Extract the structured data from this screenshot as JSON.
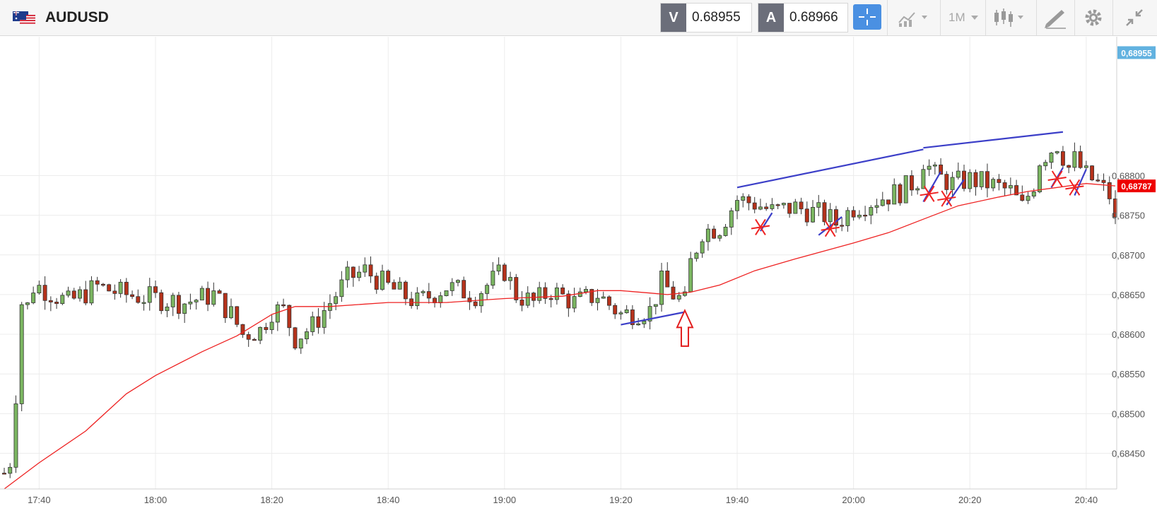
{
  "toolbar": {
    "symbol": "AUDUSD",
    "sell_label": "V",
    "sell_price": "0.68955",
    "buy_label": "A",
    "buy_price": "0.68966",
    "timeframe": "1M"
  },
  "colors": {
    "up_candle": "#7bb661",
    "down_candle": "#b5321b",
    "moving_average": "#ee2222",
    "drawing_lines": "#3c3fc8",
    "markers": "#ee2222",
    "accent": "#4a90e2"
  },
  "chart_data": {
    "type": "candlestick",
    "title": "",
    "xlabel": "",
    "ylabel": "",
    "ylim": [
      0.68405,
      0.68975
    ],
    "x_tick_labels": [
      "17:40",
      "18:00",
      "18:20",
      "18:40",
      "19:00",
      "19:20",
      "19:40",
      "20:00",
      "20:20",
      "20:40"
    ],
    "y_tick_labels": [
      "0,68450",
      "0,68500",
      "0,68550",
      "0,68600",
      "0,68650",
      "0,68700",
      "0,68750",
      "0,68800"
    ],
    "y_tick_values": [
      0.6845,
      0.685,
      0.6855,
      0.686,
      0.6865,
      0.687,
      0.6875,
      0.688
    ],
    "x_start": "17:34",
    "x_end": "20:45",
    "price_labels": [
      {
        "text": "0,68955",
        "value": 0.68955,
        "color": "#62b2e0"
      },
      {
        "text": "0,68787",
        "value": 0.68787,
        "color": "#ee0000"
      }
    ],
    "anchors": [
      [
        "17:34",
        0.68425
      ],
      [
        "17:35",
        0.6844
      ],
      [
        "17:36",
        0.68525
      ],
      [
        "17:37",
        0.6864
      ],
      [
        "17:38",
        0.68635
      ],
      [
        "17:39",
        0.6866
      ],
      [
        "17:40",
        0.6866
      ],
      [
        "17:45",
        0.6864
      ],
      [
        "17:50",
        0.6866
      ],
      [
        "17:55",
        0.6865
      ],
      [
        "18:00",
        0.68645
      ],
      [
        "18:05",
        0.6864
      ],
      [
        "18:10",
        0.6865
      ],
      [
        "18:13",
        0.68625
      ],
      [
        "18:15",
        0.686
      ],
      [
        "18:18",
        0.68605
      ],
      [
        "18:20",
        0.6863
      ],
      [
        "18:22",
        0.6863
      ],
      [
        "18:24",
        0.68595
      ],
      [
        "18:27",
        0.6861
      ],
      [
        "18:30",
        0.6864
      ],
      [
        "18:33",
        0.6867
      ],
      [
        "18:36",
        0.6868
      ],
      [
        "18:40",
        0.6866
      ],
      [
        "18:45",
        0.6864
      ],
      [
        "18:50",
        0.6866
      ],
      [
        "18:55",
        0.6865
      ],
      [
        "19:00",
        0.6868
      ],
      [
        "19:02",
        0.6865
      ],
      [
        "19:05",
        0.6864
      ],
      [
        "19:08",
        0.68655
      ],
      [
        "19:12",
        0.6864
      ],
      [
        "19:16",
        0.6865
      ],
      [
        "19:20",
        0.68625
      ],
      [
        "19:25",
        0.6863
      ],
      [
        "19:27",
        0.68665
      ],
      [
        "19:29",
        0.6865
      ],
      [
        "19:31",
        0.6864
      ],
      [
        "19:32",
        0.6869
      ],
      [
        "19:34",
        0.6873
      ],
      [
        "19:37",
        0.68735
      ],
      [
        "19:40",
        0.6877
      ],
      [
        "19:43",
        0.68765
      ],
      [
        "19:46",
        0.68755
      ],
      [
        "19:50",
        0.6876
      ],
      [
        "19:55",
        0.6875
      ],
      [
        "19:57",
        0.6874
      ],
      [
        "20:00",
        0.6876
      ],
      [
        "20:04",
        0.6877
      ],
      [
        "20:08",
        0.6878
      ],
      [
        "20:11",
        0.68795
      ],
      [
        "20:12",
        0.6882
      ],
      [
        "20:14",
        0.688
      ],
      [
        "20:17",
        0.6879
      ],
      [
        "20:20",
        0.68795
      ],
      [
        "20:23",
        0.6879
      ],
      [
        "20:27",
        0.6878
      ],
      [
        "20:29",
        0.6876
      ],
      [
        "20:31",
        0.6879
      ],
      [
        "20:32",
        0.6882
      ],
      [
        "20:35",
        0.6884
      ],
      [
        "20:37",
        0.6881
      ],
      [
        "20:38",
        0.6882
      ],
      [
        "20:40",
        0.688
      ],
      [
        "20:42",
        0.6879
      ],
      [
        "20:44",
        0.68775
      ],
      [
        "20:45",
        0.6874
      ]
    ],
    "moving_average": [
      [
        "17:34",
        0.68405
      ],
      [
        "17:40",
        0.68438
      ],
      [
        "17:48",
        0.68478
      ],
      [
        "17:55",
        0.68525
      ],
      [
        "18:00",
        0.68548
      ],
      [
        "18:08",
        0.68578
      ],
      [
        "18:14",
        0.68598
      ],
      [
        "18:20",
        0.68625
      ],
      [
        "18:24",
        0.68635
      ],
      [
        "18:30",
        0.68635
      ],
      [
        "18:40",
        0.6864
      ],
      [
        "18:50",
        0.6864
      ],
      [
        "19:00",
        0.68645
      ],
      [
        "19:10",
        0.68648
      ],
      [
        "19:16",
        0.68655
      ],
      [
        "19:20",
        0.68655
      ],
      [
        "19:25",
        0.68652
      ],
      [
        "19:28",
        0.6865
      ],
      [
        "19:32",
        0.68653
      ],
      [
        "19:37",
        0.68662
      ],
      [
        "19:43",
        0.6868
      ],
      [
        "19:50",
        0.68695
      ],
      [
        "20:00",
        0.68715
      ],
      [
        "20:06",
        0.68728
      ],
      [
        "20:12",
        0.68745
      ],
      [
        "20:18",
        0.68762
      ],
      [
        "20:25",
        0.68773
      ],
      [
        "20:30",
        0.6878
      ],
      [
        "20:35",
        0.68785
      ],
      [
        "20:40",
        0.6879
      ],
      [
        "20:45",
        0.68787
      ]
    ],
    "trend_lines": [
      {
        "from": [
          "19:20",
          0.68612
        ],
        "to": [
          "19:31",
          0.68628
        ]
      },
      {
        "from": [
          "19:40",
          0.68785
        ],
        "to": [
          "20:12",
          0.68833
        ]
      },
      {
        "from": [
          "20:12",
          0.68835
        ],
        "to": [
          "20:36",
          0.68855
        ]
      },
      {
        "from": [
          "19:44",
          0.6873
        ],
        "to": [
          "19:46",
          0.68753
        ]
      },
      {
        "from": [
          "19:54",
          0.68725
        ],
        "to": [
          "19:58",
          0.68748
        ]
      },
      {
        "from": [
          "20:12",
          0.68767
        ],
        "to": [
          "20:15",
          0.68805
        ]
      },
      {
        "from": [
          "20:16",
          0.68763
        ],
        "to": [
          "20:19",
          0.68795
        ]
      },
      {
        "from": [
          "20:34",
          0.68785
        ],
        "to": [
          "20:36",
          0.6881
        ]
      },
      {
        "from": [
          "20:38",
          0.68775
        ],
        "to": [
          "20:40",
          0.68808
        ]
      }
    ],
    "x_markers": [
      [
        "19:44",
        0.68735
      ],
      [
        "19:56",
        0.68733
      ],
      [
        "20:13",
        0.68777
      ],
      [
        "20:16",
        0.68771
      ],
      [
        "20:35",
        0.68796
      ],
      [
        "20:38",
        0.68785
      ]
    ],
    "arrow": {
      "time": "19:31",
      "top": 0.6863,
      "bottom": 0.68585
    }
  }
}
